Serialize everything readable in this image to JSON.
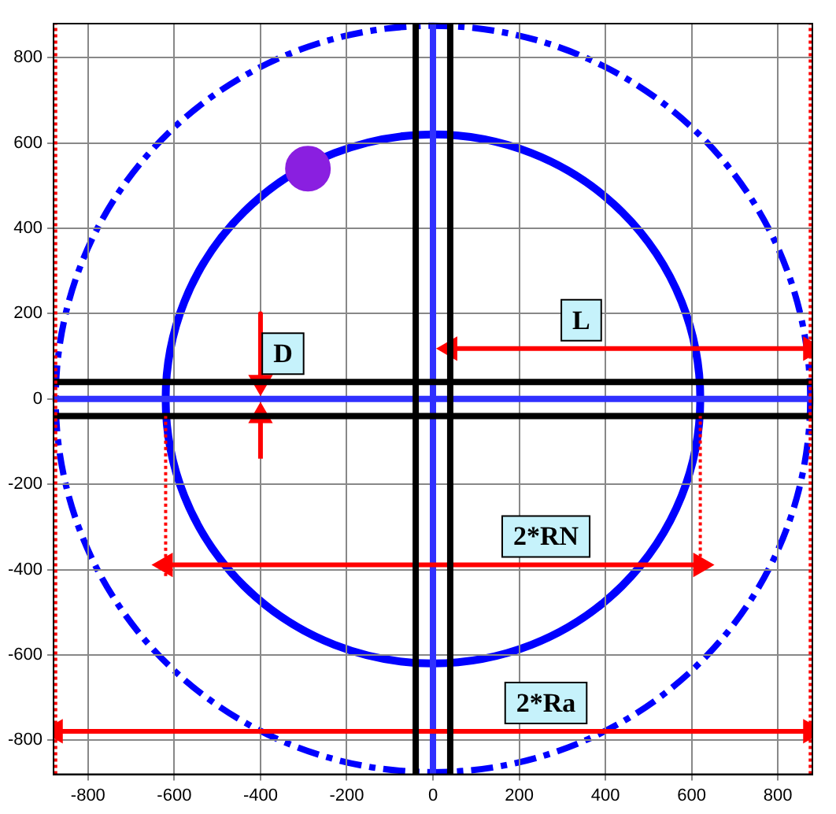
{
  "chart_data": {
    "type": "line",
    "xlim": [
      -880,
      880
    ],
    "ylim": [
      -880,
      880
    ],
    "xticks": [
      -800,
      -600,
      -400,
      -200,
      0,
      200,
      400,
      600,
      800
    ],
    "yticks": [
      -800,
      -600,
      -400,
      -200,
      0,
      200,
      400,
      600,
      800
    ],
    "grid": true,
    "legend": false,
    "marker": "none",
    "line_style": "solid",
    "series": [
      {
        "color": "#000000",
        "x": [
          -40,
          -40
        ],
        "values": [
          -880,
          880
        ]
      },
      {
        "color": "#000000",
        "x": [
          40,
          40
        ],
        "values": [
          -880,
          880
        ]
      },
      {
        "color": "#000000",
        "x": [
          -880,
          880
        ],
        "values": [
          40,
          40
        ]
      },
      {
        "color": "#000000",
        "x": [
          -880,
          880
        ],
        "values": [
          -40,
          -40
        ]
      },
      {
        "color": "#ff0000",
        "line_style": "dotted",
        "x": [
          -875,
          -875
        ],
        "values": [
          -880,
          880
        ]
      },
      {
        "color": "#ff0000",
        "line_style": "dotted",
        "x": [
          875,
          875
        ],
        "values": [
          -880,
          880
        ]
      },
      {
        "color": "#ff0000",
        "line_style": "dotted",
        "x": [
          -620,
          -620
        ],
        "values": [
          -415,
          -40
        ]
      },
      {
        "color": "#ff0000",
        "line_style": "dotted",
        "x": [
          620,
          620
        ],
        "values": [
          -400,
          -40
        ]
      },
      {
        "color": "#ff0000",
        "marker": "triangle",
        "x": [
          40,
          460,
          875
        ],
        "values": [
          118,
          118,
          118
        ]
      },
      {
        "color": "#ff0000",
        "marker": "triangle",
        "x": [
          -620,
          0,
          620
        ],
        "values": [
          -389,
          -389,
          -389
        ]
      },
      {
        "color": "#ff0000",
        "marker": "triangle",
        "x": [
          -875,
          0,
          875
        ],
        "values": [
          -779,
          -779,
          -779
        ]
      },
      {
        "color": "#ff0000",
        "marker": "triangle",
        "x": [
          -400,
          -400
        ],
        "values": [
          200,
          40
        ]
      },
      {
        "color": "#ff0000",
        "marker": "triangle",
        "x": [
          -400,
          -400
        ],
        "values": [
          -140,
          -40
        ]
      },
      {
        "color": "#3030ff",
        "x": [
          0,
          0
        ],
        "values": [
          -880,
          880
        ]
      },
      {
        "color": "#3030ff",
        "x": [
          -880,
          880
        ],
        "values": [
          0,
          0
        ]
      },
      {
        "type": "scatter",
        "color": "#8a1fe0",
        "marker": "circle",
        "x": [
          -290
        ],
        "values": [
          540
        ]
      }
    ],
    "annotations": [
      {
        "text": "D",
        "x": -348,
        "y": 40
      },
      {
        "text": "L",
        "x": 344,
        "y": 118
      },
      {
        "text": "2*RN",
        "x": 262,
        "y": -389
      },
      {
        "text": "2*Ra",
        "x": 262,
        "y": -779
      }
    ]
  }
}
